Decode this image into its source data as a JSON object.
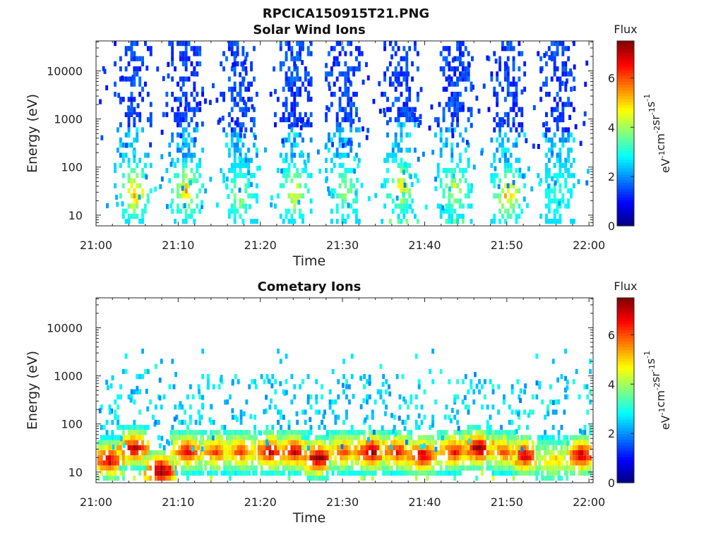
{
  "figure": {
    "file_title": "RPCICA150915T21.PNG"
  },
  "chart_data": [
    {
      "type": "heatmap",
      "title": "Solar Wind Ions",
      "xlabel": "Time",
      "ylabel": "Energy (eV)",
      "x_ticks": [
        "21:00",
        "21:10",
        "21:20",
        "21:30",
        "21:40",
        "21:50",
        "22:00"
      ],
      "x_range_minutes": [
        0,
        60.5
      ],
      "y_scale": "log",
      "y_ticks": [
        "10",
        "100",
        "1000",
        "10000"
      ],
      "y_range_eV": [
        6,
        42000
      ],
      "colorbar": {
        "title": "Flux",
        "label_parts": [
          "eV",
          "-1",
          "cm",
          "-2",
          "sr",
          "-1",
          "s",
          "-1"
        ],
        "ticks": [
          "0",
          "2",
          "4",
          "6"
        ],
        "range": [
          0,
          7.5
        ],
        "colormap": "jet"
      },
      "bursts": [
        {
          "t": 4.5,
          "peak_flux": 6.5,
          "peak_energy_eV": 35
        },
        {
          "t": 10.8,
          "peak_flux": 6.0,
          "peak_energy_eV": 35
        },
        {
          "t": 17.4,
          "peak_flux": 4.5,
          "peak_energy_eV": 30
        },
        {
          "t": 24.0,
          "peak_flux": 5.5,
          "peak_energy_eV": 35
        },
        {
          "t": 30.2,
          "peak_flux": 4.5,
          "peak_energy_eV": 35
        },
        {
          "t": 37.0,
          "peak_flux": 5.5,
          "peak_energy_eV": 45
        },
        {
          "t": 43.5,
          "peak_flux": 5.0,
          "peak_energy_eV": 40
        },
        {
          "t": 50.0,
          "peak_flux": 6.0,
          "peak_energy_eV": 30
        },
        {
          "t": 56.0,
          "peak_flux": 3.5,
          "peak_energy_eV": 30
        }
      ]
    },
    {
      "type": "heatmap",
      "title": "Cometary Ions",
      "xlabel": "Time",
      "ylabel": "Energy (eV)",
      "x_ticks": [
        "21:00",
        "21:10",
        "21:20",
        "21:30",
        "21:40",
        "21:50",
        "22:00"
      ],
      "x_range_minutes": [
        0,
        60.5
      ],
      "y_scale": "log",
      "y_ticks": [
        "10",
        "100",
        "1000",
        "10000"
      ],
      "y_range_eV": [
        6,
        42000
      ],
      "colorbar": {
        "title": "Flux",
        "label_parts": [
          "eV",
          "-1",
          "cm",
          "-2",
          "sr",
          "-1",
          "s",
          "-1"
        ],
        "ticks": [
          "0",
          "2",
          "4",
          "6"
        ],
        "range": [
          0,
          7.5
        ],
        "colormap": "jet"
      },
      "bursts": [
        {
          "t": 1.5,
          "peak_flux": 7.0,
          "peak_energy_eV": 20
        },
        {
          "t": 4.5,
          "peak_flux": 7.0,
          "peak_energy_eV": 35
        },
        {
          "t": 7.8,
          "peak_flux": 7.5,
          "peak_energy_eV": 12
        },
        {
          "t": 11.0,
          "peak_flux": 6.5,
          "peak_energy_eV": 30
        },
        {
          "t": 14.5,
          "peak_flux": 6.0,
          "peak_energy_eV": 30
        },
        {
          "t": 17.5,
          "peak_flux": 6.0,
          "peak_energy_eV": 30
        },
        {
          "t": 21.0,
          "peak_flux": 7.0,
          "peak_energy_eV": 30
        },
        {
          "t": 24.0,
          "peak_flux": 7.0,
          "peak_energy_eV": 30
        },
        {
          "t": 27.0,
          "peak_flux": 7.5,
          "peak_energy_eV": 22
        },
        {
          "t": 30.0,
          "peak_flux": 6.0,
          "peak_energy_eV": 30
        },
        {
          "t": 33.5,
          "peak_flux": 7.5,
          "peak_energy_eV": 30
        },
        {
          "t": 36.5,
          "peak_flux": 6.5,
          "peak_energy_eV": 30
        },
        {
          "t": 39.5,
          "peak_flux": 7.0,
          "peak_energy_eV": 25
        },
        {
          "t": 43.5,
          "peak_flux": 6.5,
          "peak_energy_eV": 30
        },
        {
          "t": 46.5,
          "peak_flux": 7.5,
          "peak_energy_eV": 35
        },
        {
          "t": 49.5,
          "peak_flux": 6.0,
          "peak_energy_eV": 30
        },
        {
          "t": 52.0,
          "peak_flux": 7.0,
          "peak_energy_eV": 25
        },
        {
          "t": 55.5,
          "peak_flux": 5.0,
          "peak_energy_eV": 20
        },
        {
          "t": 59.0,
          "peak_flux": 7.0,
          "peak_energy_eV": 25
        }
      ]
    }
  ]
}
